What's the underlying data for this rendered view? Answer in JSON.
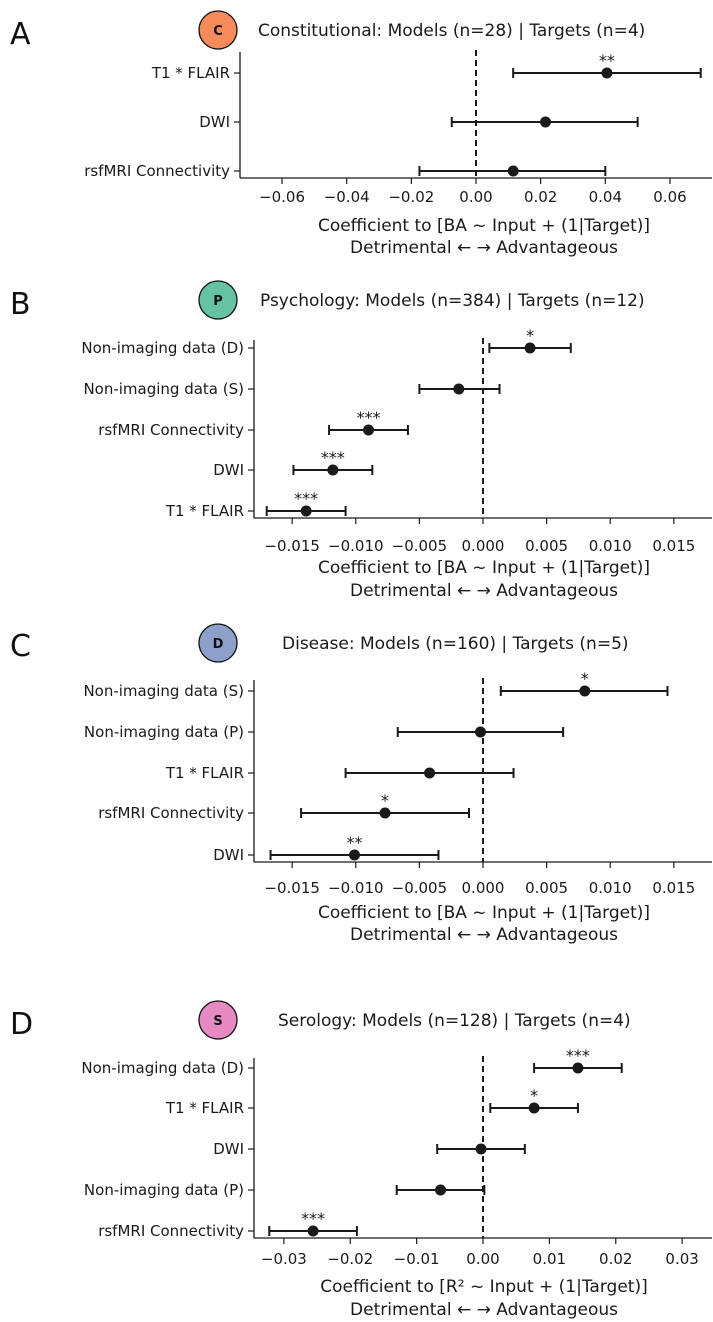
{
  "chart_data": [
    {
      "type": "scatter",
      "panel_letter": "A",
      "badge": {
        "letter": "C",
        "color": "#f58a5a"
      },
      "title": "Constitutional: Models (n=28) | Targets (n=4)",
      "xlabel": "Coefficient to [BA ~ Input + (1|Target)]",
      "xlabel2": "Detrimental ← → Advantageous",
      "xlim": [
        -0.073,
        0.073
      ],
      "xticks": [
        -0.06,
        -0.04,
        -0.02,
        0.0,
        0.02,
        0.04,
        0.06
      ],
      "xtick_labels": [
        "−0.06",
        "−0.04",
        "−0.02",
        "0.00",
        "0.02",
        "0.04",
        "0.06"
      ],
      "rows": [
        {
          "label": "T1 * FLAIR",
          "value": 0.0405,
          "ci": [
            0.0115,
            0.0695
          ],
          "sig": "**"
        },
        {
          "label": "DWI",
          "value": 0.0215,
          "ci": [
            -0.0075,
            0.05
          ],
          "sig": ""
        },
        {
          "label": "rsfMRI Connectivity",
          "value": 0.0115,
          "ci": [
            -0.0175,
            0.04
          ],
          "sig": ""
        }
      ]
    },
    {
      "type": "scatter",
      "panel_letter": "B",
      "badge": {
        "letter": "P",
        "color": "#66c2a5"
      },
      "title": "Psychology: Models (n=384) | Targets (n=12)",
      "xlabel": "Coefficient to [BA ~ Input + (1|Target)]",
      "xlabel2": "Detrimental ← → Advantageous",
      "xlim": [
        -0.018,
        0.018
      ],
      "xticks": [
        -0.015,
        -0.01,
        -0.005,
        0.0,
        0.005,
        0.01,
        0.015
      ],
      "xtick_labels": [
        "−0.015",
        "−0.010",
        "−0.005",
        "0.000",
        "0.005",
        "0.010",
        "0.015"
      ],
      "rows": [
        {
          "label": "Non-imaging data (D)",
          "value": 0.0037,
          "ci": [
            0.0005,
            0.0069
          ],
          "sig": "*"
        },
        {
          "label": "Non-imaging data (S)",
          "value": -0.0019,
          "ci": [
            -0.005,
            0.0013
          ],
          "sig": ""
        },
        {
          "label": "rsfMRI Connectivity",
          "value": -0.009,
          "ci": [
            -0.0121,
            -0.0059
          ],
          "sig": "***"
        },
        {
          "label": "DWI",
          "value": -0.0118,
          "ci": [
            -0.0149,
            -0.0087
          ],
          "sig": "***"
        },
        {
          "label": "T1 * FLAIR",
          "value": -0.0139,
          "ci": [
            -0.017,
            -0.0108
          ],
          "sig": "***"
        }
      ]
    },
    {
      "type": "scatter",
      "panel_letter": "C",
      "badge": {
        "letter": "D",
        "color": "#8da0cb"
      },
      "title": "Disease: Models (n=160) | Targets (n=5)",
      "xlabel": "Coefficient to [BA ~ Input + (1|Target)]",
      "xlabel2": "Detrimental ← → Advantageous",
      "xlim": [
        -0.018,
        0.018
      ],
      "xticks": [
        -0.015,
        -0.01,
        -0.005,
        0.0,
        0.005,
        0.01,
        0.015
      ],
      "xtick_labels": [
        "−0.015",
        "−0.010",
        "−0.005",
        "0.000",
        "0.005",
        "0.010",
        "0.015"
      ],
      "rows": [
        {
          "label": "Non-imaging data (S)",
          "value": 0.008,
          "ci": [
            0.0014,
            0.0145
          ],
          "sig": "*"
        },
        {
          "label": "Non-imaging data (P)",
          "value": -0.0002,
          "ci": [
            -0.0067,
            0.0063
          ],
          "sig": ""
        },
        {
          "label": "T1 * FLAIR",
          "value": -0.0042,
          "ci": [
            -0.0108,
            0.0024
          ],
          "sig": ""
        },
        {
          "label": "rsfMRI Connectivity",
          "value": -0.0077,
          "ci": [
            -0.0143,
            -0.0011
          ],
          "sig": "*"
        },
        {
          "label": "DWI",
          "value": -0.0101,
          "ci": [
            -0.0167,
            -0.0035
          ],
          "sig": "**"
        }
      ]
    },
    {
      "type": "scatter",
      "panel_letter": "D",
      "badge": {
        "letter": "S",
        "color": "#e78ac3"
      },
      "title": "Serology: Models (n=128) | Targets (n=4)",
      "xlabel": "Coefficient to [R² ~ Input + (1|Target)]",
      "xlabel2": "Detrimental ← → Advantageous",
      "xlim": [
        -0.0345,
        0.0345
      ],
      "xticks": [
        -0.03,
        -0.02,
        -0.01,
        0.0,
        0.01,
        0.02,
        0.03
      ],
      "xtick_labels": [
        "−0.03",
        "−0.02",
        "−0.01",
        "0.00",
        "0.01",
        "0.02",
        "0.03"
      ],
      "rows": [
        {
          "label": "Non-imaging data (D)",
          "value": 0.0143,
          "ci": [
            0.0077,
            0.0209
          ],
          "sig": "***"
        },
        {
          "label": "T1 * FLAIR",
          "value": 0.0077,
          "ci": [
            0.0011,
            0.0143
          ],
          "sig": "*"
        },
        {
          "label": "DWI",
          "value": -0.0003,
          "ci": [
            -0.0069,
            0.0063
          ],
          "sig": ""
        },
        {
          "label": "Non-imaging data (P)",
          "value": -0.0064,
          "ci": [
            -0.013,
            0.0002
          ],
          "sig": ""
        },
        {
          "label": "rsfMRI Connectivity",
          "value": -0.0256,
          "ci": [
            -0.0322,
            -0.019
          ],
          "sig": "***"
        }
      ]
    }
  ]
}
